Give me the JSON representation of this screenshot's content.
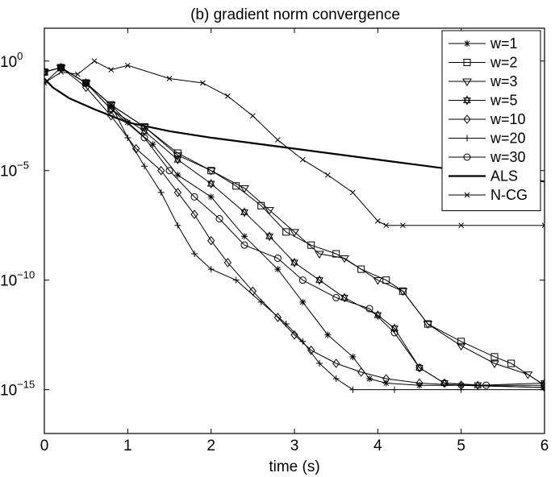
{
  "chart_data": {
    "type": "line",
    "title": "(b) gradient norm convergence",
    "xlabel": "time (s)",
    "ylabel": "",
    "xlim": [
      0,
      6
    ],
    "ylim_log10": [
      -17,
      1.5
    ],
    "yscale": "log",
    "grid": false,
    "legend_position": "top-right",
    "x_ticks": [
      {
        "value": 0,
        "label": "0"
      },
      {
        "value": 1,
        "label": "1"
      },
      {
        "value": 2,
        "label": "2"
      },
      {
        "value": 3,
        "label": "3"
      },
      {
        "value": 4,
        "label": "4"
      },
      {
        "value": 5,
        "label": "5"
      },
      {
        "value": 6,
        "label": "6"
      }
    ],
    "y_ticks": [
      {
        "exp": 0,
        "base": "10",
        "sup": "0"
      },
      {
        "exp": -5,
        "base": "10",
        "sup": "−5"
      },
      {
        "exp": -10,
        "base": "10",
        "sup": "−10"
      },
      {
        "exp": -15,
        "base": "10",
        "sup": "−15"
      }
    ],
    "series": [
      {
        "name": "w=1",
        "marker": "asterisk",
        "log10_y": [
          [
            0,
            -1
          ],
          [
            0.2,
            -0.3
          ],
          [
            0.5,
            -1
          ],
          [
            0.8,
            -2
          ],
          [
            1,
            -2.8
          ],
          [
            1.3,
            -3.8
          ],
          [
            1.6,
            -5.2
          ],
          [
            2,
            -6.2
          ],
          [
            2.4,
            -8
          ],
          [
            2.8,
            -9.5
          ],
          [
            3.1,
            -11
          ],
          [
            3.4,
            -12.5
          ],
          [
            3.7,
            -13.5
          ],
          [
            3.9,
            -14.5
          ],
          [
            4.1,
            -14.7
          ],
          [
            4.5,
            -14.8
          ],
          [
            5,
            -14.8
          ],
          [
            6,
            -14.9
          ]
        ]
      },
      {
        "name": "w=2",
        "marker": "square",
        "log10_y": [
          [
            0,
            -0.5
          ],
          [
            0.2,
            -0.3
          ],
          [
            0.5,
            -1
          ],
          [
            0.8,
            -2
          ],
          [
            1.2,
            -3
          ],
          [
            1.6,
            -4.2
          ],
          [
            2,
            -5
          ],
          [
            2.3,
            -5.7
          ],
          [
            2.6,
            -6.6
          ],
          [
            2.9,
            -7.8
          ],
          [
            3.2,
            -8.4
          ],
          [
            3.5,
            -8.8
          ],
          [
            3.8,
            -9.5
          ],
          [
            4.1,
            -10
          ],
          [
            4.3,
            -10.5
          ],
          [
            4.6,
            -12
          ],
          [
            5,
            -12.8
          ],
          [
            5.4,
            -13.5
          ],
          [
            5.6,
            -13.8
          ],
          [
            6,
            -14.8
          ]
        ]
      },
      {
        "name": "w=3",
        "marker": "triangle",
        "log10_y": [
          [
            0,
            -0.5
          ],
          [
            0.2,
            -0.3
          ],
          [
            0.5,
            -1
          ],
          [
            0.8,
            -2
          ],
          [
            1.2,
            -3
          ],
          [
            1.6,
            -4.3
          ],
          [
            2,
            -5
          ],
          [
            2.4,
            -5.8
          ],
          [
            2.7,
            -6.8
          ],
          [
            3,
            -7.8
          ],
          [
            3.3,
            -8.8
          ],
          [
            3.6,
            -9
          ],
          [
            4,
            -10
          ],
          [
            4.3,
            -10.5
          ],
          [
            4.6,
            -12
          ],
          [
            5,
            -13
          ],
          [
            5.4,
            -13.8
          ],
          [
            5.8,
            -14.3
          ],
          [
            6,
            -14.8
          ]
        ]
      },
      {
        "name": "w=5",
        "marker": "hexagram",
        "log10_y": [
          [
            0,
            -0.5
          ],
          [
            0.2,
            -0.3
          ],
          [
            0.5,
            -1
          ],
          [
            0.8,
            -2.2
          ],
          [
            1.2,
            -3.2
          ],
          [
            1.6,
            -4.5
          ],
          [
            2,
            -5.6
          ],
          [
            2.4,
            -6.9
          ],
          [
            2.7,
            -8
          ],
          [
            3,
            -9.2
          ],
          [
            3.3,
            -10
          ],
          [
            3.6,
            -10.8
          ],
          [
            4,
            -11.6
          ],
          [
            4.2,
            -12.2
          ],
          [
            4.5,
            -14
          ],
          [
            4.8,
            -14.7
          ],
          [
            5.2,
            -14.8
          ],
          [
            6,
            -14.7
          ]
        ]
      },
      {
        "name": "w=10",
        "marker": "diamond",
        "log10_y": [
          [
            0,
            -0.5
          ],
          [
            0.2,
            -0.3
          ],
          [
            0.5,
            -1.2
          ],
          [
            0.8,
            -2.5
          ],
          [
            1.1,
            -4
          ],
          [
            1.4,
            -5
          ],
          [
            1.6,
            -6
          ],
          [
            1.8,
            -7
          ],
          [
            2,
            -8.2
          ],
          [
            2.2,
            -9.2
          ],
          [
            2.5,
            -10.5
          ],
          [
            2.8,
            -11.7
          ],
          [
            3,
            -12.5
          ],
          [
            3.2,
            -13.2
          ],
          [
            3.5,
            -13.8
          ],
          [
            3.8,
            -14.2
          ],
          [
            4.1,
            -14.5
          ],
          [
            4.5,
            -14.7
          ],
          [
            5,
            -14.8
          ],
          [
            6,
            -14.9
          ]
        ]
      },
      {
        "name": "w=20",
        "marker": "plus",
        "log10_y": [
          [
            0,
            -0.5
          ],
          [
            0.2,
            -0.3
          ],
          [
            0.5,
            -1
          ],
          [
            0.8,
            -2
          ],
          [
            1,
            -3.5
          ],
          [
            1.2,
            -4.8
          ],
          [
            1.4,
            -6
          ],
          [
            1.6,
            -7.5
          ],
          [
            1.8,
            -8.8
          ],
          [
            2,
            -9.5
          ],
          [
            2.3,
            -10
          ],
          [
            2.6,
            -11
          ],
          [
            2.9,
            -12
          ],
          [
            3.1,
            -12.8
          ],
          [
            3.3,
            -13.8
          ],
          [
            3.5,
            -14.5
          ],
          [
            3.7,
            -15
          ],
          [
            4.2,
            -15
          ],
          [
            5,
            -15
          ],
          [
            6,
            -15
          ]
        ]
      },
      {
        "name": "w=30",
        "marker": "circle",
        "log10_y": [
          [
            0,
            -0.5
          ],
          [
            0.2,
            -0.3
          ],
          [
            0.5,
            -1
          ],
          [
            0.8,
            -2.2
          ],
          [
            1.2,
            -3.5
          ],
          [
            1.5,
            -5
          ],
          [
            1.8,
            -6.2
          ],
          [
            2.1,
            -7.2
          ],
          [
            2.4,
            -8.4
          ],
          [
            2.8,
            -9
          ],
          [
            3.1,
            -10
          ],
          [
            3.5,
            -10.8
          ],
          [
            3.9,
            -11.3
          ],
          [
            4.2,
            -12.4
          ],
          [
            4.5,
            -14
          ],
          [
            4.8,
            -14.7
          ],
          [
            5.3,
            -14.8
          ],
          [
            6,
            -14.8
          ]
        ]
      },
      {
        "name": "ALS",
        "marker": "none",
        "log10_y": [
          [
            0,
            -0.8
          ],
          [
            0.1,
            -1.2
          ],
          [
            0.3,
            -1.7
          ],
          [
            0.6,
            -2.2
          ],
          [
            1,
            -2.8
          ],
          [
            1.5,
            -3.2
          ],
          [
            2,
            -3.5
          ],
          [
            3,
            -4
          ],
          [
            4,
            -4.5
          ],
          [
            5,
            -5
          ],
          [
            6,
            -5.5
          ]
        ]
      },
      {
        "name": "N-CG",
        "marker": "x",
        "log10_y": [
          [
            0,
            -1
          ],
          [
            0.2,
            -0.5
          ],
          [
            0.4,
            -0.6
          ],
          [
            0.6,
            0
          ],
          [
            0.8,
            -0.4
          ],
          [
            1,
            -0.2
          ],
          [
            1.5,
            -0.8
          ],
          [
            1.9,
            -1
          ],
          [
            2.2,
            -1.6
          ],
          [
            2.5,
            -2.5
          ],
          [
            2.8,
            -3.6
          ],
          [
            3.1,
            -4.5
          ],
          [
            3.4,
            -5.2
          ],
          [
            3.7,
            -6
          ],
          [
            4,
            -7.3
          ],
          [
            4.1,
            -7.5
          ],
          [
            4.3,
            -7.5
          ],
          [
            5,
            -7.5
          ],
          [
            6,
            -7.5
          ]
        ]
      }
    ]
  }
}
